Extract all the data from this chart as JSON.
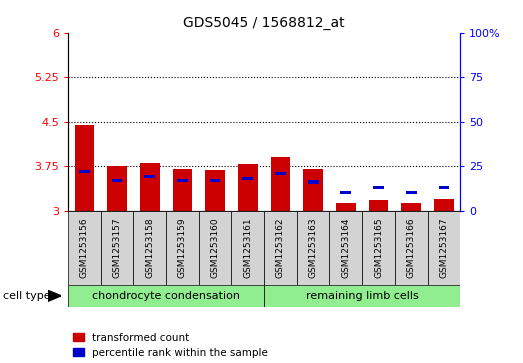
{
  "title": "GDS5045 / 1568812_at",
  "samples": [
    "GSM1253156",
    "GSM1253157",
    "GSM1253158",
    "GSM1253159",
    "GSM1253160",
    "GSM1253161",
    "GSM1253162",
    "GSM1253163",
    "GSM1253164",
    "GSM1253165",
    "GSM1253166",
    "GSM1253167"
  ],
  "red_values": [
    4.45,
    3.75,
    3.8,
    3.7,
    3.69,
    3.78,
    3.9,
    3.7,
    3.13,
    3.18,
    3.12,
    3.2
  ],
  "blue_percentiles": [
    22,
    17,
    19,
    17,
    17,
    18,
    21,
    16,
    10,
    13,
    10,
    13
  ],
  "ylim_left": [
    3.0,
    6.0
  ],
  "ylim_right": [
    0,
    100
  ],
  "yticks_left": [
    3.0,
    3.75,
    4.5,
    5.25,
    6.0
  ],
  "yticks_right": [
    0,
    25,
    50,
    75,
    100
  ],
  "ytick_labels_left": [
    "3",
    "3.75",
    "4.5",
    "5.25",
    "6"
  ],
  "ytick_labels_right": [
    "0",
    "25",
    "50",
    "75",
    "100%"
  ],
  "hlines": [
    3.75,
    4.5,
    5.25
  ],
  "group1_label": "chondrocyte condensation",
  "group2_label": "remaining limb cells",
  "group1_indices": [
    0,
    1,
    2,
    3,
    4,
    5
  ],
  "group2_indices": [
    6,
    7,
    8,
    9,
    10,
    11
  ],
  "cell_type_label": "cell type",
  "legend1": "transformed count",
  "legend2": "percentile rank within the sample",
  "red_color": "#cc0000",
  "blue_color": "#0000cc",
  "bar_bg_color": "#d3d3d3",
  "group_bg": "#90ee90",
  "bar_width": 0.6,
  "base_value": 3.0
}
